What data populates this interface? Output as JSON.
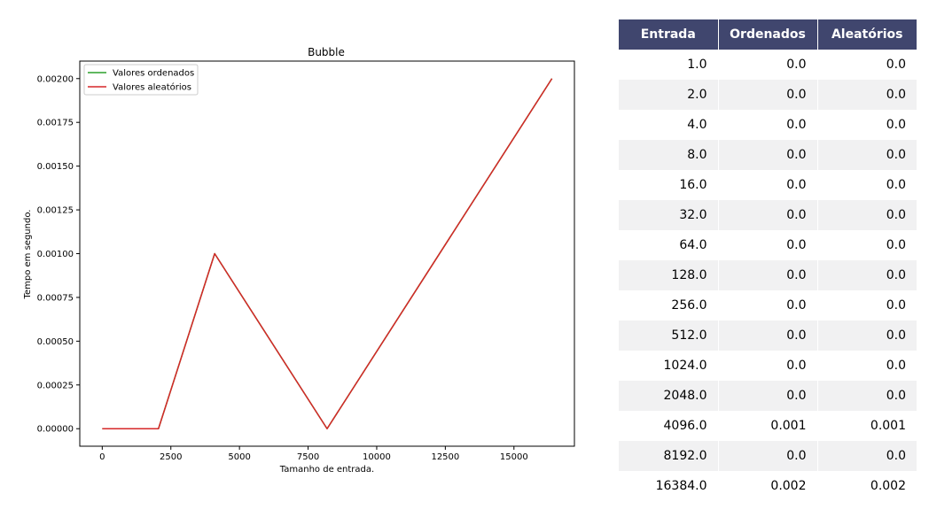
{
  "chart_data": {
    "type": "line",
    "title": "Bubble",
    "xlabel": "Tamanho de entrada.",
    "ylabel": "Tempo em segundo.",
    "x": [
      1,
      2,
      4,
      8,
      16,
      32,
      64,
      128,
      256,
      512,
      1024,
      2048,
      4096,
      8192,
      16384
    ],
    "series": [
      {
        "name": "Valores ordenados",
        "color": "#2ca02c",
        "values": [
          0,
          0,
          0,
          0,
          0,
          0,
          0,
          0,
          0,
          0,
          0,
          0,
          0.001,
          0,
          0.002
        ]
      },
      {
        "name": "Valores aleatórios",
        "color": "#d62728",
        "values": [
          0,
          0,
          0,
          0,
          0,
          0,
          0,
          0,
          0,
          0,
          0,
          0,
          0.001,
          0,
          0.002
        ]
      }
    ],
    "xticks": [
      0,
      2500,
      5000,
      7500,
      10000,
      12500,
      15000
    ],
    "xtick_labels": [
      "0",
      "2500",
      "5000",
      "7500",
      "10000",
      "12500",
      "15000"
    ],
    "yticks": [
      0,
      0.00025,
      0.0005,
      0.00075,
      0.001,
      0.00125,
      0.0015,
      0.00175,
      0.002
    ],
    "ytick_labels": [
      "0.00000",
      "0.00025",
      "0.00050",
      "0.00075",
      "0.00100",
      "0.00125",
      "0.00150",
      "0.00175",
      "0.00200"
    ],
    "xlim": [
      -818.15,
      17203.15
    ],
    "ylim": [
      -0.0001,
      0.0021
    ],
    "grid": false,
    "legend_position": "top-left"
  },
  "table": {
    "columns": [
      "Entrada",
      "Ordenados",
      "Aleatórios"
    ],
    "header_color": "#40466e",
    "rows": [
      [
        "1.0",
        "0.0",
        "0.0"
      ],
      [
        "2.0",
        "0.0",
        "0.0"
      ],
      [
        "4.0",
        "0.0",
        "0.0"
      ],
      [
        "8.0",
        "0.0",
        "0.0"
      ],
      [
        "16.0",
        "0.0",
        "0.0"
      ],
      [
        "32.0",
        "0.0",
        "0.0"
      ],
      [
        "64.0",
        "0.0",
        "0.0"
      ],
      [
        "128.0",
        "0.0",
        "0.0"
      ],
      [
        "256.0",
        "0.0",
        "0.0"
      ],
      [
        "512.0",
        "0.0",
        "0.0"
      ],
      [
        "1024.0",
        "0.0",
        "0.0"
      ],
      [
        "2048.0",
        "0.0",
        "0.0"
      ],
      [
        "4096.0",
        "0.001",
        "0.001"
      ],
      [
        "8192.0",
        "0.0",
        "0.0"
      ],
      [
        "16384.0",
        "0.002",
        "0.002"
      ]
    ]
  }
}
